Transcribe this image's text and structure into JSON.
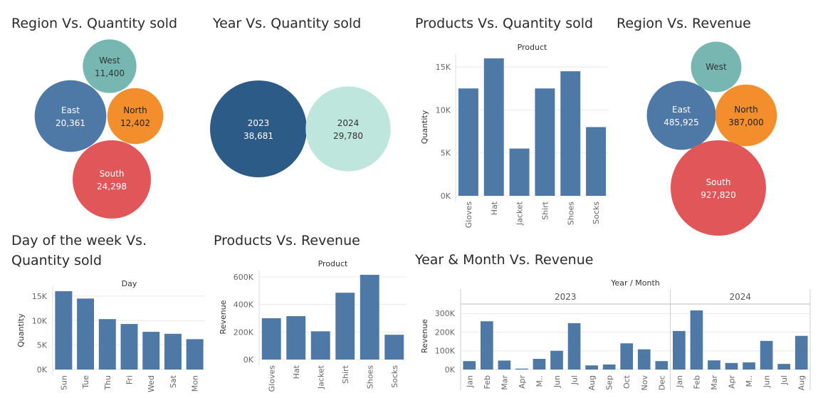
{
  "titles": {
    "region_qty": "Region Vs. Quantity sold",
    "year_qty": "Year Vs. Quantity sold",
    "product_qty": "Products Vs. Quantity sold",
    "region_rev": "Region Vs. Revenue",
    "day_qty": "Day of the week Vs. Quantity sold",
    "product_rev": "Products Vs. Revenue",
    "yearmonth_rev": "Year & Month Vs. Revenue"
  },
  "colors": {
    "bar": "#4e79a7",
    "east": "#4e79a7",
    "west": "#76b7b2",
    "north": "#f28e2b",
    "south": "#e15759",
    "y2023": "#2d5b87",
    "y2024": "#bfe6dc",
    "grid": "#e9e9e9",
    "axis_text": "#666666"
  },
  "chart_data": [
    {
      "id": "region_qty",
      "type": "packed-bubble",
      "title": "Region Vs. Quantity sold",
      "items": [
        {
          "label": "West",
          "value": 11400,
          "display": "11,400",
          "color_key": "west"
        },
        {
          "label": "East",
          "value": 20361,
          "display": "20,361",
          "color_key": "east"
        },
        {
          "label": "North",
          "value": 12402,
          "display": "12,402",
          "color_key": "north"
        },
        {
          "label": "South",
          "value": 24298,
          "display": "24,298",
          "color_key": "south"
        }
      ]
    },
    {
      "id": "year_qty",
      "type": "packed-bubble",
      "title": "Year Vs. Quantity sold",
      "items": [
        {
          "label": "2023",
          "value": 38681,
          "display": "38,681",
          "color_key": "y2023"
        },
        {
          "label": "2024",
          "value": 29780,
          "display": "29,780",
          "color_key": "y2024"
        }
      ]
    },
    {
      "id": "product_qty",
      "type": "bar",
      "title": "Products Vs. Quantity sold",
      "header": "Product",
      "ylabel": "Quantity",
      "categories": [
        "Gloves",
        "Hat",
        "Jacket",
        "Shirt",
        "Shoes",
        "Socks"
      ],
      "values": [
        12500,
        16000,
        5500,
        12500,
        14500,
        8000
      ],
      "yticks": [
        0,
        5000,
        10000,
        15000
      ],
      "ytick_labels": [
        "0K",
        "5K",
        "10K",
        "15K"
      ],
      "ylim": [
        0,
        16000
      ]
    },
    {
      "id": "region_rev",
      "type": "packed-bubble",
      "title": "Region Vs. Revenue",
      "items": [
        {
          "label": "West",
          "value": 260000,
          "display": "",
          "color_key": "west"
        },
        {
          "label": "East",
          "value": 485925,
          "display": "485,925",
          "color_key": "east"
        },
        {
          "label": "North",
          "value": 387000,
          "display": "387,000",
          "color_key": "north"
        },
        {
          "label": "South",
          "value": 927820,
          "display": "927,820",
          "color_key": "south"
        }
      ]
    },
    {
      "id": "day_qty",
      "type": "bar",
      "title": "Day of the week Vs. Quantity sold",
      "header": "Day",
      "ylabel": "Quantity",
      "categories": [
        "Sun",
        "Tue",
        "Thu",
        "Fri",
        "Wed",
        "Sat",
        "Mon"
      ],
      "values": [
        16000,
        14500,
        10300,
        9300,
        7700,
        7300,
        6200
      ],
      "yticks": [
        0,
        5000,
        10000,
        15000
      ],
      "ytick_labels": [
        "0K",
        "5K",
        "10K",
        "15K"
      ],
      "ylim": [
        0,
        16000
      ]
    },
    {
      "id": "product_rev",
      "type": "bar",
      "title": "Products Vs. Revenue",
      "header": "Product",
      "ylabel": "Revenue",
      "categories": [
        "Gloves",
        "Hat",
        "Jacket",
        "Shirt",
        "Shoes",
        "Socks"
      ],
      "values": [
        300000,
        315000,
        205000,
        485000,
        615000,
        180000
      ],
      "yticks": [
        0,
        200000,
        400000,
        600000
      ],
      "ytick_labels": [
        "0K",
        "200K",
        "400K",
        "600K"
      ],
      "ylim": [
        0,
        615000
      ]
    },
    {
      "id": "yearmonth_rev",
      "type": "bar",
      "title": "Year & Month Vs. Revenue",
      "header": "Year / Month",
      "ylabel": "Revenue",
      "groups": [
        {
          "name": "2023",
          "categories": [
            "Jan",
            "Feb",
            "Mar",
            "Apr",
            "M..",
            "Jun",
            "Jul",
            "Aug",
            "Sep",
            "Oct",
            "Nov",
            "Dec"
          ],
          "values": [
            45000,
            258000,
            48000,
            5000,
            57000,
            100000,
            248000,
            22000,
            27000,
            140000,
            108000,
            45000
          ]
        },
        {
          "name": "2024",
          "categories": [
            "Jan",
            "Feb",
            "Mar",
            "Apr",
            "M..",
            "Jun",
            "Jul",
            "Aug"
          ],
          "values": [
            206000,
            316000,
            49000,
            35000,
            38000,
            153000,
            30000,
            180000
          ]
        }
      ],
      "yticks": [
        0,
        100000,
        200000,
        300000
      ],
      "ytick_labels": [
        "0K",
        "100K",
        "200K",
        "300K"
      ],
      "ylim": [
        0,
        316000
      ]
    }
  ]
}
